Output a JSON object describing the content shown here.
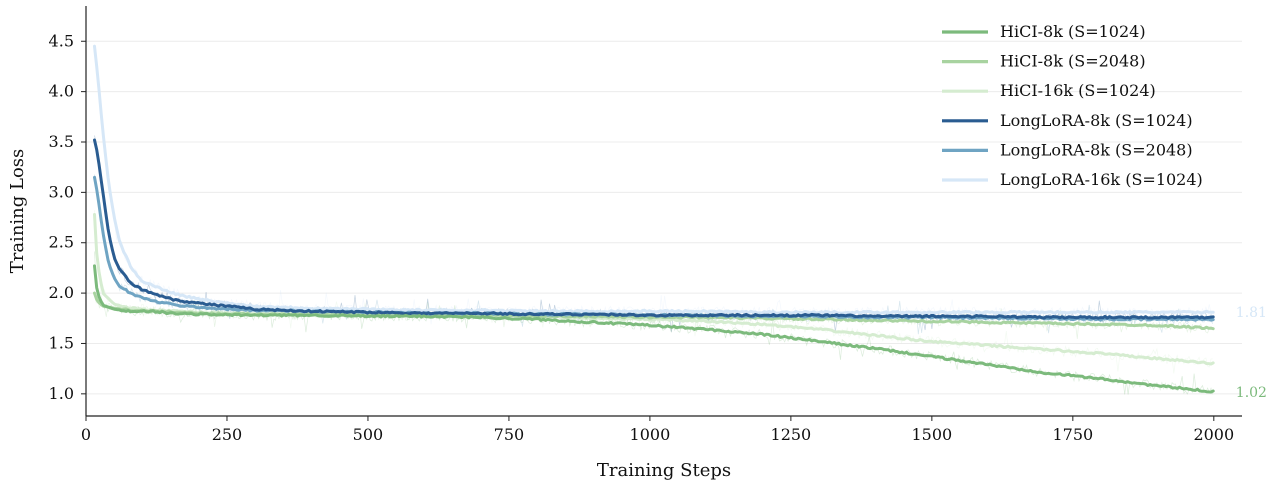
{
  "chart_data": {
    "type": "line",
    "xlabel": "Training Steps",
    "ylabel": "Training Loss",
    "xlim": [
      0,
      2050
    ],
    "ylim": [
      0.78,
      4.85
    ],
    "xticks": [
      0,
      250,
      500,
      750,
      1000,
      1250,
      1500,
      1750,
      2000
    ],
    "yticks": [
      1.0,
      1.5,
      2.0,
      2.5,
      3.0,
      3.5,
      4.0,
      4.5
    ],
    "grid": "horizontal",
    "legend_position": "top-right",
    "series": [
      {
        "name": "HiCI-8k (S=1024)",
        "color": "#7cba7c",
        "points": [
          [
            15,
            2.27
          ],
          [
            20,
            2.0
          ],
          [
            30,
            1.88
          ],
          [
            50,
            1.84
          ],
          [
            80,
            1.82
          ],
          [
            120,
            1.82
          ],
          [
            150,
            1.8
          ],
          [
            200,
            1.79
          ],
          [
            300,
            1.78
          ],
          [
            400,
            1.78
          ],
          [
            500,
            1.77
          ],
          [
            600,
            1.77
          ],
          [
            700,
            1.76
          ],
          [
            800,
            1.74
          ],
          [
            900,
            1.71
          ],
          [
            1000,
            1.68
          ],
          [
            1100,
            1.64
          ],
          [
            1200,
            1.59
          ],
          [
            1300,
            1.52
          ],
          [
            1400,
            1.45
          ],
          [
            1500,
            1.37
          ],
          [
            1600,
            1.29
          ],
          [
            1700,
            1.21
          ],
          [
            1800,
            1.15
          ],
          [
            1900,
            1.08
          ],
          [
            2000,
            1.02
          ]
        ],
        "end_label": "1.02"
      },
      {
        "name": "HiCI-8k (S=2048)",
        "color": "#a8d3a0",
        "points": [
          [
            15,
            2.0
          ],
          [
            20,
            1.92
          ],
          [
            30,
            1.87
          ],
          [
            50,
            1.85
          ],
          [
            80,
            1.83
          ],
          [
            120,
            1.82
          ],
          [
            200,
            1.8
          ],
          [
            300,
            1.79
          ],
          [
            400,
            1.79
          ],
          [
            500,
            1.78
          ],
          [
            600,
            1.78
          ],
          [
            700,
            1.78
          ],
          [
            800,
            1.77
          ],
          [
            900,
            1.77
          ],
          [
            1000,
            1.76
          ],
          [
            1100,
            1.76
          ],
          [
            1200,
            1.75
          ],
          [
            1300,
            1.74
          ],
          [
            1400,
            1.73
          ],
          [
            1500,
            1.72
          ],
          [
            1600,
            1.71
          ],
          [
            1700,
            1.7
          ],
          [
            1800,
            1.69
          ],
          [
            1900,
            1.68
          ],
          [
            2000,
            1.65
          ]
        ]
      },
      {
        "name": "HiCI-16k (S=1024)",
        "color": "#d5ecd0",
        "points": [
          [
            15,
            2.78
          ],
          [
            20,
            2.3
          ],
          [
            30,
            2.0
          ],
          [
            50,
            1.89
          ],
          [
            80,
            1.85
          ],
          [
            120,
            1.83
          ],
          [
            200,
            1.81
          ],
          [
            300,
            1.8
          ],
          [
            400,
            1.8
          ],
          [
            500,
            1.79
          ],
          [
            600,
            1.79
          ],
          [
            700,
            1.78
          ],
          [
            800,
            1.77
          ],
          [
            900,
            1.75
          ],
          [
            1000,
            1.74
          ],
          [
            1100,
            1.72
          ],
          [
            1200,
            1.69
          ],
          [
            1300,
            1.64
          ],
          [
            1400,
            1.58
          ],
          [
            1500,
            1.52
          ],
          [
            1600,
            1.48
          ],
          [
            1700,
            1.44
          ],
          [
            1800,
            1.4
          ],
          [
            1900,
            1.35
          ],
          [
            2000,
            1.3
          ]
        ]
      },
      {
        "name": "LongLoRA-8k (S=1024)",
        "color": "#2a5c91",
        "points": [
          [
            15,
            3.52
          ],
          [
            20,
            3.4
          ],
          [
            30,
            3.0
          ],
          [
            40,
            2.6
          ],
          [
            50,
            2.35
          ],
          [
            60,
            2.23
          ],
          [
            80,
            2.1
          ],
          [
            100,
            2.03
          ],
          [
            130,
            1.98
          ],
          [
            160,
            1.93
          ],
          [
            200,
            1.9
          ],
          [
            250,
            1.87
          ],
          [
            300,
            1.84
          ],
          [
            400,
            1.82
          ],
          [
            500,
            1.81
          ],
          [
            600,
            1.8
          ],
          [
            700,
            1.8
          ],
          [
            800,
            1.79
          ],
          [
            900,
            1.79
          ],
          [
            1000,
            1.78
          ],
          [
            1100,
            1.78
          ],
          [
            1200,
            1.78
          ],
          [
            1300,
            1.78
          ],
          [
            1400,
            1.77
          ],
          [
            1500,
            1.77
          ],
          [
            1600,
            1.77
          ],
          [
            1700,
            1.76
          ],
          [
            1800,
            1.76
          ],
          [
            1900,
            1.76
          ],
          [
            2000,
            1.76
          ]
        ]
      },
      {
        "name": "LongLoRA-8k (S=2048)",
        "color": "#6fa4c3",
        "points": [
          [
            15,
            3.15
          ],
          [
            20,
            3.0
          ],
          [
            30,
            2.6
          ],
          [
            40,
            2.3
          ],
          [
            50,
            2.15
          ],
          [
            60,
            2.06
          ],
          [
            80,
            2.0
          ],
          [
            100,
            1.95
          ],
          [
            130,
            1.91
          ],
          [
            160,
            1.88
          ],
          [
            200,
            1.86
          ],
          [
            250,
            1.84
          ],
          [
            300,
            1.83
          ],
          [
            400,
            1.82
          ],
          [
            500,
            1.81
          ],
          [
            600,
            1.8
          ],
          [
            700,
            1.8
          ],
          [
            800,
            1.79
          ],
          [
            900,
            1.79
          ],
          [
            1000,
            1.78
          ],
          [
            1100,
            1.78
          ],
          [
            1200,
            1.77
          ],
          [
            1300,
            1.77
          ],
          [
            1400,
            1.76
          ],
          [
            1500,
            1.76
          ],
          [
            1600,
            1.75
          ],
          [
            1700,
            1.75
          ],
          [
            1800,
            1.74
          ],
          [
            1900,
            1.74
          ],
          [
            2000,
            1.74
          ]
        ]
      },
      {
        "name": "LongLoRA-16k (S=1024)",
        "color": "#d6e7f7",
        "points": [
          [
            15,
            4.45
          ],
          [
            20,
            4.2
          ],
          [
            30,
            3.6
          ],
          [
            40,
            3.1
          ],
          [
            50,
            2.75
          ],
          [
            60,
            2.5
          ],
          [
            80,
            2.25
          ],
          [
            100,
            2.12
          ],
          [
            130,
            2.05
          ],
          [
            160,
            1.99
          ],
          [
            200,
            1.94
          ],
          [
            250,
            1.9
          ],
          [
            300,
            1.87
          ],
          [
            400,
            1.85
          ],
          [
            500,
            1.84
          ],
          [
            600,
            1.83
          ],
          [
            700,
            1.83
          ],
          [
            800,
            1.82
          ],
          [
            900,
            1.82
          ],
          [
            1000,
            1.82
          ],
          [
            1100,
            1.82
          ],
          [
            1200,
            1.81
          ],
          [
            1300,
            1.81
          ],
          [
            1400,
            1.81
          ],
          [
            1500,
            1.81
          ],
          [
            1600,
            1.81
          ],
          [
            1700,
            1.81
          ],
          [
            1800,
            1.81
          ],
          [
            1900,
            1.81
          ],
          [
            2000,
            1.81
          ]
        ],
        "end_label": "1.81"
      }
    ]
  }
}
